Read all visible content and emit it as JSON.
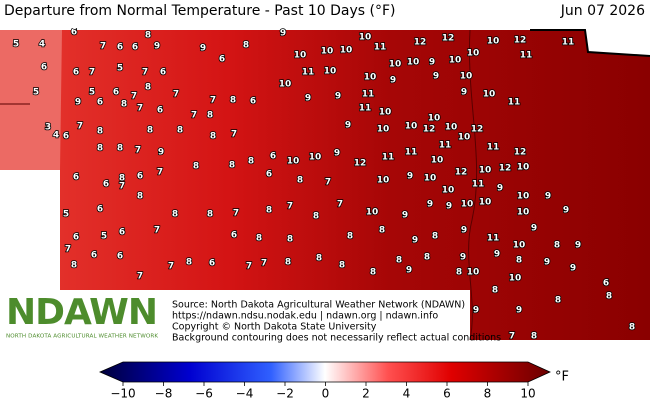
{
  "map": {
    "title": "Departure from Normal Temperature - Past 10 Days (°F)",
    "date": "Jun 07 2026",
    "logo": "NDAWN",
    "logo_subtitle": "NORTH DAKOTA AGRICULTURAL WEATHER NETWORK",
    "source_lines": [
      "Source: North Dakota Agricultural Weather Network (NDAWN)",
      "https://ndawn.ndsu.nodak.edu | ndawn.org | ndawn.info",
      "Copyright © North Dakota State University",
      "Background contouring does not necessarily reflect actual conditions"
    ],
    "station_values": [
      5,
      4,
      6,
      5,
      3,
      4,
      6,
      7,
      6,
      6,
      8,
      9,
      9,
      8,
      6,
      9,
      10,
      10,
      10,
      10,
      11,
      12,
      12,
      10,
      12,
      11,
      11,
      10,
      10,
      10,
      9,
      10,
      11,
      10,
      10,
      9,
      9,
      10,
      9,
      10,
      11,
      10,
      6,
      8,
      7,
      9,
      9,
      11,
      10,
      11,
      9,
      10,
      10,
      12,
      10,
      10,
      12,
      10,
      11,
      11,
      12,
      10,
      12,
      10,
      12,
      10,
      11,
      11,
      12,
      9,
      10,
      10,
      6,
      8,
      7,
      8,
      8,
      8,
      8,
      7,
      6,
      6,
      7,
      5,
      7,
      6,
      5,
      6,
      7,
      8,
      9,
      6,
      8,
      7,
      6,
      7,
      7,
      8,
      8,
      8,
      7,
      9,
      6,
      6,
      8,
      6,
      7,
      8,
      8,
      6,
      8,
      7,
      10,
      9,
      10,
      10,
      11,
      9,
      10,
      9,
      9,
      10,
      10,
      10,
      9,
      9,
      9,
      10,
      7,
      8,
      7,
      8,
      7,
      8,
      8,
      8,
      7,
      6,
      5,
      6,
      5,
      6,
      7,
      6,
      8,
      8,
      8,
      8,
      9,
      8,
      9,
      11,
      10,
      9,
      8,
      9,
      9,
      8,
      9,
      9,
      6,
      8,
      8,
      10,
      8,
      10,
      9,
      8,
      8,
      9,
      8,
      8,
      8,
      8,
      8,
      7,
      7,
      6,
      8,
      7,
      7,
      6,
      6,
      8,
      7,
      8,
      9,
      9,
      7,
      8
    ],
    "colorbar": {
      "lim": [
        -10,
        10
      ],
      "unit": "°F",
      "ticks": [
        {
          "value": -10,
          "label": "−10"
        },
        {
          "value": -8,
          "label": "−8"
        },
        {
          "value": -6,
          "label": "−6"
        },
        {
          "value": -4,
          "label": "−4"
        },
        {
          "value": -2,
          "label": "−2"
        },
        0,
        2,
        4,
        6,
        8,
        10
      ]
    }
  }
}
